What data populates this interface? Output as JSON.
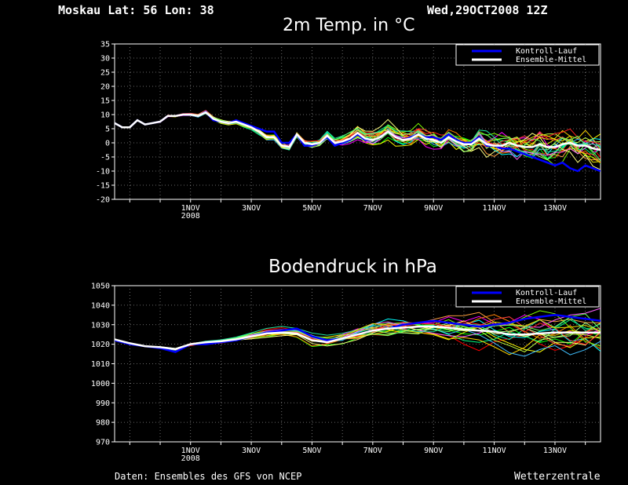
{
  "header": {
    "location": "Moskau  Lat: 56 Lon: 38",
    "run": "Wed,29OCT2008 12Z"
  },
  "footer": {
    "source": "Daten: Ensembles des GFS von NCEP",
    "brand": "Wetterzentrale"
  },
  "legend": {
    "control": "Kontroll-Lauf",
    "mean": "Ensemble-Mittel"
  },
  "colors": {
    "control": "#0000ff",
    "mean": "#ffffff",
    "members": [
      "#ff0000",
      "#00ff00",
      "#ffff00",
      "#00ffff",
      "#ff00ff",
      "#ff8000",
      "#80ff00",
      "#00ff80",
      "#ffd700",
      "#ff4040",
      "#40c0ff",
      "#c0ff40",
      "#ffa040",
      "#a0ff80",
      "#ff60ff",
      "#20e0a0",
      "#ffff80",
      "#ff2020",
      "#60ff60",
      "#e0e000"
    ]
  },
  "chart_data": [
    {
      "type": "line",
      "title": "2m Temp. in °C",
      "ylim": [
        -20,
        35
      ],
      "yticks": [
        -20,
        -15,
        -10,
        -5,
        0,
        5,
        10,
        15,
        20,
        25,
        30,
        35
      ],
      "xlim": [
        0,
        16
      ],
      "xticks": [
        {
          "pos": 2.5,
          "label": "1NOV",
          "sub": "2008"
        },
        {
          "pos": 4.5,
          "label": "3NOV"
        },
        {
          "pos": 6.5,
          "label": "5NOV"
        },
        {
          "pos": 8.5,
          "label": "7NOV"
        },
        {
          "pos": 10.5,
          "label": "9NOV"
        },
        {
          "pos": 12.5,
          "label": "11NOV"
        },
        {
          "pos": 14.5,
          "label": "13NOV"
        }
      ],
      "grid": true,
      "legend_position": "top-right",
      "x": [
        0,
        0.25,
        0.5,
        0.75,
        1,
        1.25,
        1.5,
        1.75,
        2,
        2.25,
        2.5,
        2.75,
        3,
        3.25,
        3.5,
        3.75,
        4,
        4.25,
        4.5,
        4.75,
        5,
        5.25,
        5.5,
        5.75,
        6,
        6.25,
        6.5,
        6.75,
        7,
        7.25,
        7.5,
        7.75,
        8,
        8.25,
        8.5,
        8.75,
        9,
        9.25,
        9.5,
        9.75,
        10,
        10.25,
        10.5,
        10.75,
        11,
        11.25,
        11.5,
        11.75,
        12,
        12.25,
        12.5,
        12.75,
        13,
        13.25,
        13.5,
        13.75,
        14,
        14.25,
        14.5,
        14.75,
        15,
        15.25,
        15.5,
        15.75,
        16
      ],
      "series": [
        {
          "name": "Kontroll-Lauf",
          "values": [
            7,
            5.5,
            5.5,
            8,
            6.5,
            7,
            7.5,
            9.5,
            9.5,
            10,
            10,
            9.5,
            11,
            8,
            7.5,
            7,
            8,
            7,
            6,
            5,
            4,
            4,
            0,
            0,
            3,
            -1,
            -1,
            0,
            2,
            -1,
            0,
            1,
            3,
            1,
            1,
            2,
            4,
            2,
            1,
            2,
            3,
            2,
            2,
            1,
            3,
            1,
            0,
            0,
            2,
            -1,
            -1,
            -2,
            -2,
            -3,
            -4,
            -5,
            -6,
            -7,
            -8,
            -7,
            -9,
            -10,
            -8,
            -9,
            -10
          ]
        },
        {
          "name": "Ensemble-Mittel",
          "values": [
            7,
            5.5,
            5.5,
            8,
            6.5,
            7,
            7.5,
            9.5,
            9.5,
            10,
            10,
            9.5,
            10.8,
            8.5,
            7.5,
            7,
            7.5,
            6.5,
            5.5,
            4,
            2,
            2,
            -1,
            -1.5,
            3,
            0,
            -0.5,
            0,
            2.5,
            0,
            0.5,
            1.5,
            3.5,
            1.5,
            1,
            2,
            4,
            2,
            1,
            1.5,
            3,
            1.5,
            1,
            0,
            2,
            0.5,
            -0.5,
            -0.5,
            1.5,
            -0.5,
            -1,
            -1,
            0,
            -1,
            -1.5,
            -1.5,
            -0.5,
            -1.5,
            -1.5,
            -0.5,
            0,
            -1,
            -1,
            -2,
            -2.5
          ]
        }
      ]
    },
    {
      "type": "line",
      "title": "Bodendruck in hPa",
      "ylim": [
        970,
        1050
      ],
      "yticks": [
        970,
        980,
        990,
        1000,
        1010,
        1020,
        1030,
        1040,
        1050
      ],
      "xlim": [
        0,
        16
      ],
      "xticks": [
        {
          "pos": 2.5,
          "label": "1NOV",
          "sub": "2008"
        },
        {
          "pos": 4.5,
          "label": "3NOV"
        },
        {
          "pos": 6.5,
          "label": "5NOV"
        },
        {
          "pos": 8.5,
          "label": "7NOV"
        },
        {
          "pos": 10.5,
          "label": "9NOV"
        },
        {
          "pos": 12.5,
          "label": "11NOV"
        },
        {
          "pos": 14.5,
          "label": "13NOV"
        }
      ],
      "grid": true,
      "legend_position": "top-right",
      "x": [
        0,
        0.5,
        1,
        1.5,
        2,
        2.5,
        3,
        3.5,
        4,
        4.5,
        5,
        5.5,
        6,
        6.5,
        7,
        7.5,
        8,
        8.5,
        9,
        9.5,
        10,
        10.5,
        11,
        11.5,
        12,
        12.5,
        13,
        13.5,
        14,
        14.5,
        15,
        15.5,
        16
      ],
      "series": [
        {
          "name": "Kontroll-Lauf",
          "values": [
            1022,
            1020,
            1019,
            1018,
            1016,
            1020,
            1020,
            1021,
            1022,
            1024,
            1026,
            1027,
            1028,
            1024,
            1022,
            1023,
            1025,
            1027,
            1028,
            1030,
            1031,
            1032,
            1031,
            1030,
            1029,
            1030,
            1031,
            1033,
            1034,
            1035,
            1034,
            1033,
            1032
          ]
        },
        {
          "name": "Ensemble-Mittel",
          "values": [
            1022.5,
            1020.5,
            1019,
            1018.5,
            1017.5,
            1020,
            1021,
            1021.5,
            1022.5,
            1024,
            1025.5,
            1026,
            1025.5,
            1022,
            1021,
            1023,
            1025,
            1027,
            1028,
            1028.5,
            1029,
            1029,
            1028.5,
            1027.5,
            1027,
            1026.5,
            1025,
            1025,
            1025.5,
            1026,
            1026,
            1026,
            1026
          ]
        }
      ]
    }
  ]
}
